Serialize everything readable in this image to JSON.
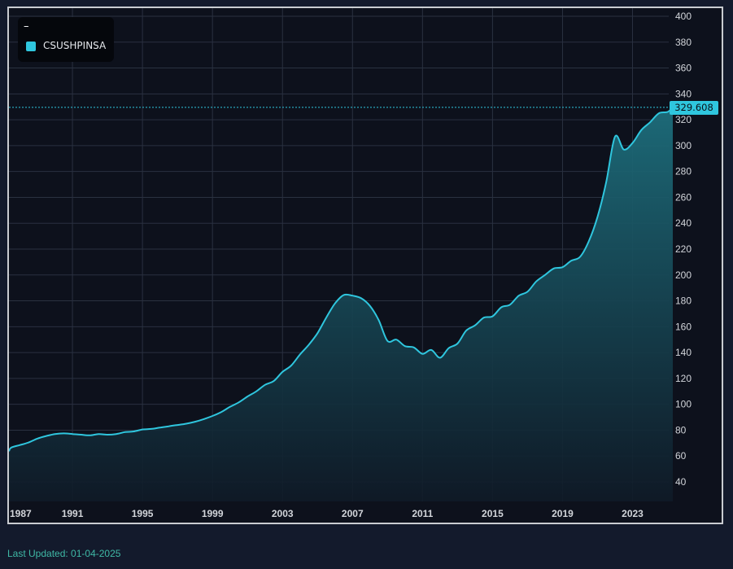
{
  "legend": {
    "title": "–",
    "series_label": "CSUSHPINSA"
  },
  "last_value_label": "329.608",
  "footer": {
    "last_updated": "Last Updated: 01-04-2025"
  },
  "colors": {
    "line": "#2fc6de",
    "fill_top": "#1d6e7c",
    "fill_bottom": "#0f1a27",
    "background": "#0d111c",
    "grid": "#2a3140",
    "axis_text": "#d2d5da",
    "footer_text": "#3fb9a6"
  },
  "chart_data": {
    "type": "area",
    "title": "",
    "xlabel": "",
    "ylabel": "",
    "x_ticks": [
      "1987",
      "1991",
      "1995",
      "1999",
      "2003",
      "2007",
      "2011",
      "2015",
      "2019",
      "2023"
    ],
    "y_ticks": [
      40,
      60,
      80,
      100,
      120,
      140,
      160,
      180,
      200,
      220,
      240,
      260,
      280,
      300,
      320,
      340,
      360,
      380,
      400
    ],
    "xlim": [
      1987.0,
      2025.3
    ],
    "ylim": [
      25,
      400
    ],
    "grid": true,
    "legend_position": "top-left",
    "last_value": 329.608,
    "series": [
      {
        "name": "CSUSHPINSA",
        "x": [
          1987.0,
          1987.5,
          1988.0,
          1988.5,
          1989.0,
          1989.5,
          1990.0,
          1990.5,
          1991.0,
          1991.5,
          1992.0,
          1992.5,
          1993.0,
          1993.5,
          1994.0,
          1994.5,
          1995.0,
          1995.5,
          1996.0,
          1996.5,
          1997.0,
          1997.5,
          1998.0,
          1998.5,
          1999.0,
          1999.5,
          2000.0,
          2000.5,
          2001.0,
          2001.5,
          2002.0,
          2002.5,
          2003.0,
          2003.5,
          2004.0,
          2004.5,
          2005.0,
          2005.5,
          2006.0,
          2006.5,
          2007.0,
          2007.5,
          2008.0,
          2008.5,
          2009.0,
          2009.5,
          2010.0,
          2010.5,
          2011.0,
          2011.5,
          2012.0,
          2012.5,
          2013.0,
          2013.5,
          2014.0,
          2014.5,
          2015.0,
          2015.5,
          2016.0,
          2016.5,
          2017.0,
          2017.5,
          2018.0,
          2018.5,
          2019.0,
          2019.5,
          2020.0,
          2020.5,
          2021.0,
          2021.5,
          2022.0,
          2022.5,
          2023.0,
          2023.5,
          2024.0,
          2024.5,
          2025.0,
          2025.3
        ],
        "values": [
          63.8,
          66.5,
          68.5,
          70.5,
          73.5,
          75.5,
          77.0,
          77.5,
          77.0,
          76.5,
          76.0,
          77.0,
          76.5,
          77.0,
          78.5,
          79.0,
          80.5,
          81.0,
          82.0,
          83.0,
          84.0,
          85.0,
          86.5,
          88.5,
          91.0,
          94.0,
          98.0,
          101.5,
          106.0,
          110.0,
          115.0,
          118.0,
          125.0,
          130.0,
          138.5,
          146.0,
          155.0,
          167.0,
          178.0,
          184.5,
          184.0,
          182.0,
          176.0,
          165.0,
          149.0,
          150.0,
          145.0,
          144.0,
          139.0,
          142.0,
          136.0,
          143.5,
          147.0,
          157.0,
          161.0,
          167.0,
          168.0,
          175.0,
          177.0,
          184.0,
          187.0,
          195.0,
          200.0,
          205.0,
          206.0,
          211.0,
          214.0,
          226.0,
          245.0,
          272.0,
          307.0,
          297.0,
          302.0,
          312.0,
          318.0,
          325.0,
          326.0,
          329.608
        ]
      }
    ]
  }
}
